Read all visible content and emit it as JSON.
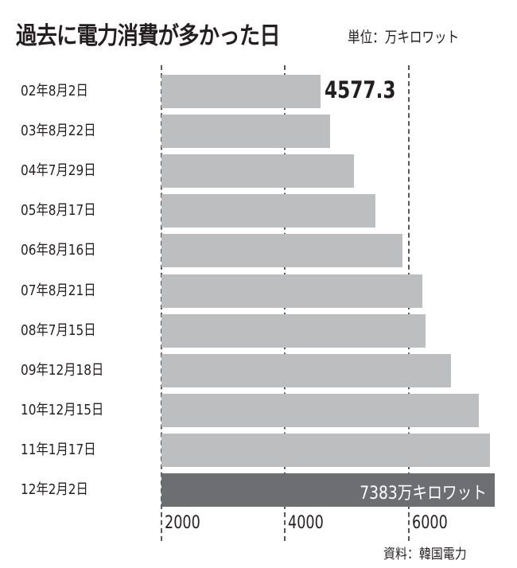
{
  "header": {
    "title": "過去に電力消費が多かった日",
    "unit": "単位：万キロワット"
  },
  "footer": {
    "source": "資料：韓国電力"
  },
  "annotations": {
    "first": "4577.3",
    "last": "7383万キロワット"
  },
  "colors": {
    "bar": "#bcbec0",
    "highlight": "#6d6e71",
    "text": "#231f20",
    "grid": "#58595b"
  },
  "chart_data": {
    "type": "bar",
    "orientation": "horizontal",
    "title": "過去に電力消費が多かった日",
    "subtitle": "単位：万キロワット",
    "xlabel": "",
    "ylabel": "",
    "categories": [
      "02年8月2日",
      "03年8月22日",
      "04年7月29日",
      "05年8月17日",
      "06年8月16日",
      "07年8月21日",
      "08年7月15日",
      "09年12月18日",
      "10年12月15日",
      "11年1月17日",
      "12年2月2日"
    ],
    "values": [
      4577.3,
      4730,
      5110,
      5460,
      5900,
      6220,
      6270,
      6680,
      7130,
      7310,
      7383
    ],
    "xlim": [
      2000,
      7400
    ],
    "xticks": [
      "2000",
      "4000",
      "6000"
    ],
    "grid": true,
    "annotations": [
      {
        "category": "02年8月2日",
        "text": "4577.3"
      },
      {
        "category": "12年2月2日",
        "text": "7383万キロワット"
      }
    ],
    "source": "資料：韓国電力"
  }
}
